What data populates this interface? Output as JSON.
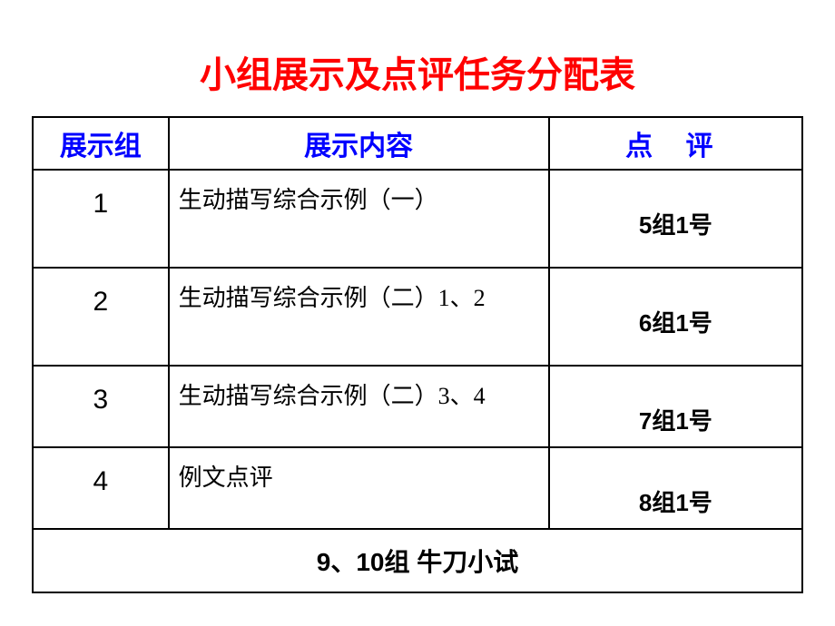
{
  "title": "小组展示及点评任务分配表",
  "table": {
    "headers": {
      "group": "展示组",
      "content": "展示内容",
      "review": "点 评"
    },
    "rows": [
      {
        "group": "1",
        "content": "生动描写综合示例（一）",
        "review": "5组1号"
      },
      {
        "group": "2",
        "content": "生动描写综合示例（二）1、2",
        "review": "6组1号"
      },
      {
        "group": "3",
        "content": "生动描写综合示例（二）3、4",
        "review": "7组1号"
      },
      {
        "group": "4",
        "content": "例文点评",
        "review": "8组1号"
      }
    ],
    "footer": "9、10组  牛刀小试"
  },
  "colors": {
    "title_color": "#ff0000",
    "header_text_color": "#0000ff",
    "border_color": "#000000",
    "body_text_color": "#000000",
    "background": "#ffffff"
  },
  "typography": {
    "title_fontsize": 40,
    "header_fontsize": 30,
    "cell_fontsize": 26,
    "group_num_fontsize": 30,
    "footer_fontsize": 28
  }
}
